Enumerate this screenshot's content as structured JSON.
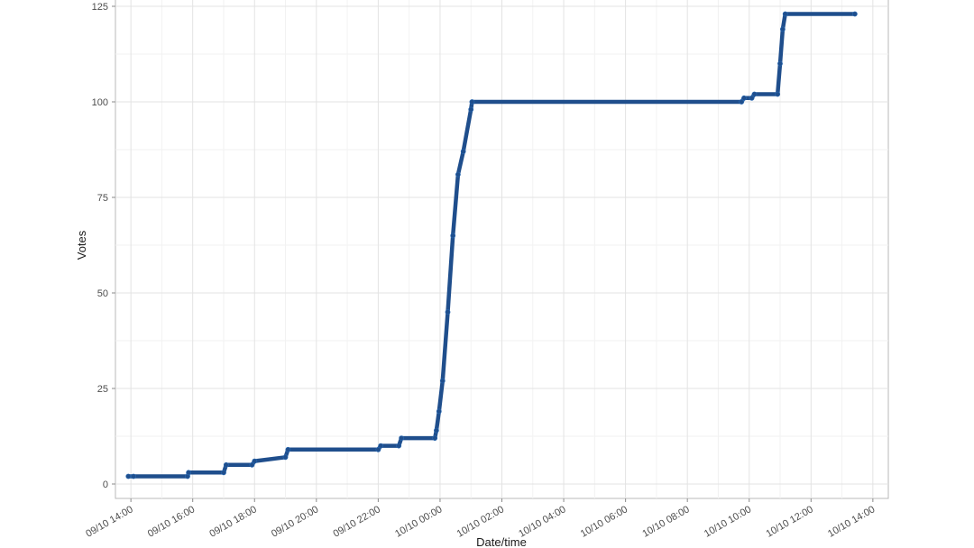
{
  "chart_data": {
    "type": "line",
    "title": "",
    "xlabel": "Date/time",
    "ylabel": "Votes",
    "ylim": [
      0,
      125
    ],
    "y_ticks": [
      0,
      25,
      50,
      75,
      100,
      125
    ],
    "x_range": [
      "2019-10-09 13:30",
      "2019-10-10 14:30"
    ],
    "x_ticks": [
      {
        "x": "2019-10-09 14:00",
        "label": "09/10 14:00"
      },
      {
        "x": "2019-10-09 16:00",
        "label": "09/10 16:00"
      },
      {
        "x": "2019-10-09 18:00",
        "label": "09/10 18:00"
      },
      {
        "x": "2019-10-09 20:00",
        "label": "09/10 20:00"
      },
      {
        "x": "2019-10-09 22:00",
        "label": "09/10 22:00"
      },
      {
        "x": "2019-10-10 00:00",
        "label": "10/10 00:00"
      },
      {
        "x": "2019-10-10 02:00",
        "label": "10/10 02:00"
      },
      {
        "x": "2019-10-10 04:00",
        "label": "10/10 04:00"
      },
      {
        "x": "2019-10-10 06:00",
        "label": "10/10 06:00"
      },
      {
        "x": "2019-10-10 08:00",
        "label": "10/10 08:00"
      },
      {
        "x": "2019-10-10 10:00",
        "label": "10/10 10:00"
      },
      {
        "x": "2019-10-10 12:00",
        "label": "10/10 12:00"
      },
      {
        "x": "2019-10-10 14:00",
        "label": "10/10 14:00"
      }
    ],
    "grid": true,
    "series_color": "#1f4e8c",
    "series": [
      {
        "x": [
          "2019-10-09 13:55",
          "2019-10-09 14:05",
          "2019-10-09 15:50",
          "2019-10-09 15:52",
          "2019-10-09 17:00",
          "2019-10-09 17:05",
          "2019-10-09 17:55",
          "2019-10-09 18:00",
          "2019-10-09 19:00",
          "2019-10-09 19:05",
          "2019-10-09 22:00",
          "2019-10-09 22:05",
          "2019-10-09 22:40",
          "2019-10-09 22:45",
          "2019-10-09 23:50",
          "2019-10-09 23:53",
          "2019-10-09 23:58",
          "2019-10-10 00:05",
          "2019-10-10 00:15",
          "2019-10-10 00:25",
          "2019-10-10 00:35",
          "2019-10-10 00:45",
          "2019-10-10 01:00",
          "2019-10-10 01:02",
          "2019-10-10 09:45",
          "2019-10-10 09:50",
          "2019-10-10 10:05",
          "2019-10-10 10:10",
          "2019-10-10 10:55",
          "2019-10-10 11:00",
          "2019-10-10 11:05",
          "2019-10-10 11:10",
          "2019-10-10 13:25"
        ],
        "y": [
          2,
          2,
          2,
          3,
          3,
          5,
          5,
          6,
          7,
          9,
          9,
          10,
          10,
          12,
          12,
          14,
          19,
          27,
          45,
          65,
          81,
          87,
          98,
          100,
          100,
          101,
          101,
          102,
          102,
          110,
          119,
          123,
          123
        ]
      }
    ]
  }
}
